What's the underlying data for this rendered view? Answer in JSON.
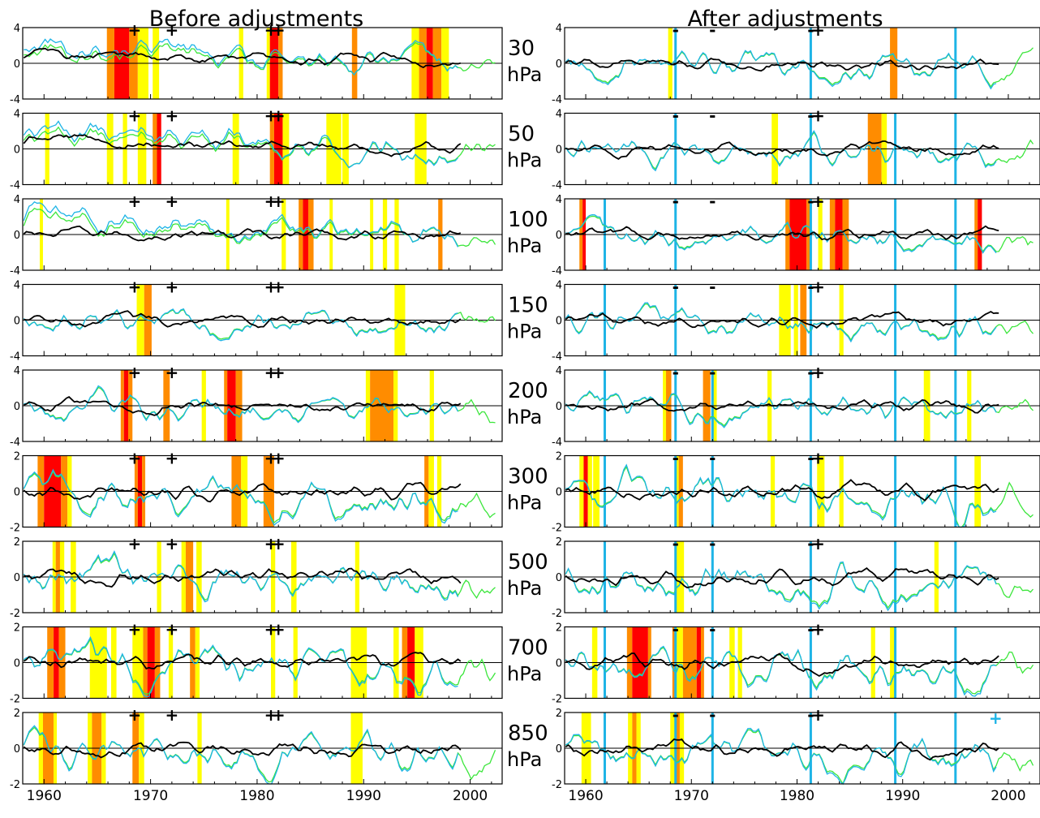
{
  "chart_data": {
    "type": "line",
    "titles": [
      "Before adjustments",
      "After adjustments"
    ],
    "x_ticks": [
      1960,
      1970,
      1980,
      1990,
      2000
    ],
    "xlim": [
      1958,
      2003
    ],
    "unit": "hPa",
    "colors": {
      "black_series": "#000000",
      "blue_series": "#1eb4e6",
      "green_series": "#3ce63c",
      "band_yellow": "#ffff00",
      "band_orange": "#ff8c00",
      "band_red": "#ff0000",
      "break_line": "#1eb4e6"
    },
    "event_marks": {
      "before_plus": [
        1968.5,
        1972.0,
        1981.3,
        1982.0
      ],
      "after_minus": [
        1968.5,
        1972.0,
        1981.3
      ],
      "after_plus": [
        1982.0
      ],
      "after_extra_plus_850": 1998.8
    },
    "blue_vertical_lines": {
      "30": [
        1968.5,
        1981.3,
        1995.0
      ],
      "50": [
        1968.5,
        1981.3,
        1989.3,
        1995.0
      ],
      "100": [
        1961.8,
        1968.5,
        1981.3,
        1989.3,
        1995.0
      ],
      "150": [
        1961.8,
        1968.5,
        1981.3,
        1989.3,
        1995.0
      ],
      "200": [
        1961.8,
        1968.5,
        1972.0,
        1981.3,
        1989.3,
        1995.0
      ],
      "300": [
        1961.8,
        1968.5,
        1972.0,
        1981.3,
        1989.3,
        1995.0
      ],
      "500": [
        1961.8,
        1968.5,
        1972.0,
        1981.3,
        1989.3,
        1995.0
      ],
      "700": [
        1961.8,
        1968.5,
        1972.0,
        1981.3,
        1989.3,
        1995.0
      ],
      "850": [
        1961.8,
        1968.5,
        1972.0,
        1981.3,
        1989.3,
        1995.0
      ]
    },
    "levels": [
      {
        "level": "30",
        "ylim": [
          -4,
          4
        ],
        "yticks": [
          "4",
          "0",
          "-4"
        ],
        "before_bands": [
          [
            1965.9,
            1966.6,
            "o"
          ],
          [
            1966.6,
            1968.0,
            "r"
          ],
          [
            1968.0,
            1968.8,
            "o"
          ],
          [
            1968.8,
            1969.8,
            "y"
          ],
          [
            1970.2,
            1970.8,
            "y"
          ],
          [
            1978.3,
            1978.7,
            "y"
          ],
          [
            1980.9,
            1981.2,
            "y"
          ],
          [
            1981.2,
            1982.0,
            "r"
          ],
          [
            1982.0,
            1982.4,
            "o"
          ],
          [
            1988.9,
            1989.4,
            "o"
          ],
          [
            1994.5,
            1995.2,
            "y"
          ],
          [
            1995.2,
            1995.9,
            "o"
          ],
          [
            1995.9,
            1996.5,
            "r"
          ],
          [
            1996.5,
            1997.3,
            "o"
          ],
          [
            1997.3,
            1998.0,
            "y"
          ]
        ],
        "after_bands": [
          [
            1967.8,
            1968.2,
            "y"
          ],
          [
            1988.8,
            1989.5,
            "o"
          ]
        ]
      },
      {
        "level": "50",
        "ylim": [
          -4,
          4
        ],
        "yticks": [
          "4",
          "0",
          "-4"
        ],
        "before_bands": [
          [
            1960.1,
            1960.5,
            "y"
          ],
          [
            1965.9,
            1966.5,
            "y"
          ],
          [
            1967.4,
            1967.8,
            "y"
          ],
          [
            1968.8,
            1969.6,
            "y"
          ],
          [
            1970.2,
            1970.6,
            "o"
          ],
          [
            1970.6,
            1971.0,
            "r"
          ],
          [
            1977.7,
            1978.3,
            "y"
          ],
          [
            1981.2,
            1981.6,
            "o"
          ],
          [
            1981.6,
            1982.4,
            "r"
          ],
          [
            1982.4,
            1983.0,
            "y"
          ],
          [
            1986.5,
            1987.9,
            "y"
          ],
          [
            1988.0,
            1988.6,
            "y"
          ],
          [
            1994.8,
            1995.9,
            "y"
          ]
        ],
        "after_bands": [
          [
            1977.6,
            1978.2,
            "y"
          ],
          [
            1986.7,
            1988.0,
            "o"
          ],
          [
            1988.0,
            1988.5,
            "y"
          ]
        ]
      },
      {
        "level": "100",
        "ylim": [
          -4,
          4
        ],
        "yticks": [
          "4",
          "0",
          "-4"
        ],
        "before_bands": [
          [
            1959.6,
            1959.9,
            "y"
          ],
          [
            1977.1,
            1977.4,
            "y"
          ],
          [
            1982.3,
            1982.7,
            "y"
          ],
          [
            1983.9,
            1984.3,
            "o"
          ],
          [
            1984.3,
            1984.8,
            "r"
          ],
          [
            1984.8,
            1985.3,
            "o"
          ],
          [
            1986.8,
            1987.1,
            "y"
          ],
          [
            1990.6,
            1990.9,
            "y"
          ],
          [
            1991.8,
            1992.2,
            "y"
          ],
          [
            1992.9,
            1993.3,
            "y"
          ],
          [
            1997.0,
            1997.4,
            "o"
          ]
        ],
        "after_bands": [
          [
            1959.4,
            1959.7,
            "o"
          ],
          [
            1959.7,
            1960.0,
            "r"
          ],
          [
            1978.9,
            1979.3,
            "o"
          ],
          [
            1979.3,
            1980.9,
            "r"
          ],
          [
            1980.9,
            1981.3,
            "o"
          ],
          [
            1982.0,
            1982.4,
            "y"
          ],
          [
            1983.1,
            1983.6,
            "o"
          ],
          [
            1983.6,
            1984.3,
            "r"
          ],
          [
            1984.3,
            1984.9,
            "o"
          ],
          [
            1996.8,
            1997.1,
            "o"
          ],
          [
            1997.1,
            1997.5,
            "r"
          ]
        ]
      },
      {
        "level": "150",
        "ylim": [
          -4,
          4
        ],
        "yticks": [
          "4",
          "0",
          "-4"
        ],
        "before_bands": [
          [
            1968.7,
            1969.4,
            "y"
          ],
          [
            1969.4,
            1970.1,
            "o"
          ],
          [
            1992.9,
            1993.9,
            "y"
          ]
        ],
        "after_bands": [
          [
            1978.3,
            1979.4,
            "y"
          ],
          [
            1979.7,
            1980.1,
            "y"
          ],
          [
            1980.3,
            1980.9,
            "o"
          ],
          [
            1984.0,
            1984.4,
            "y"
          ]
        ]
      },
      {
        "level": "200",
        "ylim": [
          -4,
          4
        ],
        "yticks": [
          "4",
          "0",
          "-4"
        ],
        "before_bands": [
          [
            1967.2,
            1967.5,
            "o"
          ],
          [
            1967.5,
            1967.9,
            "r"
          ],
          [
            1967.9,
            1968.3,
            "o"
          ],
          [
            1971.2,
            1971.8,
            "o"
          ],
          [
            1974.8,
            1975.2,
            "y"
          ],
          [
            1976.9,
            1977.2,
            "o"
          ],
          [
            1977.2,
            1978.0,
            "r"
          ],
          [
            1978.0,
            1978.6,
            "o"
          ],
          [
            1990.2,
            1990.6,
            "y"
          ],
          [
            1990.6,
            1992.8,
            "o"
          ],
          [
            1992.8,
            1993.2,
            "y"
          ],
          [
            1996.2,
            1996.6,
            "y"
          ]
        ],
        "after_bands": [
          [
            1967.3,
            1967.6,
            "y"
          ],
          [
            1967.6,
            1968.1,
            "o"
          ],
          [
            1971.1,
            1971.8,
            "o"
          ],
          [
            1972.0,
            1972.4,
            "y"
          ],
          [
            1977.2,
            1977.6,
            "y"
          ],
          [
            1992.0,
            1992.6,
            "y"
          ],
          [
            1996.1,
            1996.5,
            "y"
          ]
        ]
      }
    ],
    "levels_lower": [
      {
        "level": "300",
        "ylim": [
          -2,
          2
        ],
        "yticks": [
          "2",
          "0",
          "-2"
        ],
        "before_bands": [
          [
            1959.4,
            1960.0,
            "o"
          ],
          [
            1960.0,
            1961.6,
            "r"
          ],
          [
            1961.6,
            1962.2,
            "o"
          ],
          [
            1962.2,
            1962.6,
            "y"
          ],
          [
            1968.5,
            1968.8,
            "o"
          ],
          [
            1968.8,
            1969.2,
            "r"
          ],
          [
            1969.2,
            1969.5,
            "o"
          ],
          [
            1977.6,
            1978.5,
            "o"
          ],
          [
            1978.5,
            1979.1,
            "y"
          ],
          [
            1980.6,
            1981.6,
            "o"
          ],
          [
            1995.7,
            1996.1,
            "o"
          ],
          [
            1996.1,
            1996.6,
            "y"
          ],
          [
            1996.9,
            1997.3,
            "y"
          ]
        ],
        "after_bands": [
          [
            1959.4,
            1959.8,
            "y"
          ],
          [
            1959.8,
            1960.2,
            "r"
          ],
          [
            1960.2,
            1960.6,
            "y"
          ],
          [
            1960.7,
            1961.3,
            "y"
          ],
          [
            1968.5,
            1968.8,
            "y"
          ],
          [
            1968.8,
            1969.2,
            "o"
          ],
          [
            1977.5,
            1977.9,
            "y"
          ],
          [
            1981.9,
            1982.6,
            "y"
          ],
          [
            1984.0,
            1984.4,
            "y"
          ],
          [
            1996.8,
            1997.4,
            "y"
          ]
        ]
      },
      {
        "level": "500",
        "ylim": [
          -2,
          2
        ],
        "yticks": [
          "2",
          "0",
          "-2"
        ],
        "before_bands": [
          [
            1960.8,
            1961.1,
            "y"
          ],
          [
            1961.1,
            1961.5,
            "o"
          ],
          [
            1961.5,
            1961.9,
            "y"
          ],
          [
            1962.5,
            1963.0,
            "y"
          ],
          [
            1970.6,
            1971.0,
            "y"
          ],
          [
            1972.9,
            1973.3,
            "y"
          ],
          [
            1973.3,
            1974.0,
            "o"
          ],
          [
            1974.3,
            1974.8,
            "y"
          ],
          [
            1981.3,
            1981.7,
            "y"
          ],
          [
            1983.2,
            1983.7,
            "y"
          ],
          [
            1989.2,
            1989.6,
            "y"
          ]
        ],
        "after_bands": [
          [
            1968.4,
            1969.3,
            "y"
          ],
          [
            1993.0,
            1993.4,
            "y"
          ]
        ]
      },
      {
        "level": "700",
        "ylim": [
          -2,
          2
        ],
        "yticks": [
          "2",
          "0",
          "-2"
        ],
        "before_bands": [
          [
            1960.3,
            1960.9,
            "o"
          ],
          [
            1960.9,
            1961.4,
            "r"
          ],
          [
            1961.4,
            1962.0,
            "o"
          ],
          [
            1964.3,
            1965.9,
            "y"
          ],
          [
            1966.3,
            1966.8,
            "y"
          ],
          [
            1968.3,
            1969.3,
            "y"
          ],
          [
            1969.3,
            1969.7,
            "o"
          ],
          [
            1969.7,
            1970.4,
            "r"
          ],
          [
            1970.4,
            1970.9,
            "o"
          ],
          [
            1971.7,
            1972.1,
            "y"
          ],
          [
            1973.7,
            1974.2,
            "o"
          ],
          [
            1974.2,
            1974.6,
            "y"
          ],
          [
            1981.3,
            1981.7,
            "y"
          ],
          [
            1983.4,
            1983.8,
            "y"
          ],
          [
            1988.8,
            1990.3,
            "y"
          ],
          [
            1992.8,
            1993.3,
            "y"
          ],
          [
            1993.6,
            1994.1,
            "o"
          ],
          [
            1994.1,
            1994.8,
            "r"
          ],
          [
            1994.8,
            1995.6,
            "y"
          ]
        ],
        "after_bands": [
          [
            1960.6,
            1961.1,
            "y"
          ],
          [
            1963.9,
            1964.4,
            "o"
          ],
          [
            1964.4,
            1965.9,
            "r"
          ],
          [
            1965.9,
            1966.2,
            "o"
          ],
          [
            1968.2,
            1968.6,
            "o"
          ],
          [
            1968.6,
            1969.2,
            "y"
          ],
          [
            1969.2,
            1970.5,
            "o"
          ],
          [
            1970.5,
            1970.9,
            "r"
          ],
          [
            1970.9,
            1971.2,
            "o"
          ],
          [
            1973.6,
            1974.1,
            "y"
          ],
          [
            1974.4,
            1974.8,
            "y"
          ],
          [
            1987.0,
            1987.4,
            "y"
          ],
          [
            1988.8,
            1989.4,
            "y"
          ]
        ]
      },
      {
        "level": "850",
        "ylim": [
          -2,
          2
        ],
        "yticks": [
          "2",
          "0",
          "-2"
        ],
        "before_bands": [
          [
            1959.5,
            1959.9,
            "y"
          ],
          [
            1959.9,
            1960.9,
            "o"
          ],
          [
            1960.9,
            1961.2,
            "y"
          ],
          [
            1964.1,
            1964.5,
            "y"
          ],
          [
            1964.5,
            1965.4,
            "o"
          ],
          [
            1965.4,
            1965.8,
            "y"
          ],
          [
            1968.3,
            1968.9,
            "o"
          ],
          [
            1968.9,
            1969.4,
            "y"
          ],
          [
            1974.4,
            1974.8,
            "y"
          ],
          [
            1988.8,
            1989.9,
            "y"
          ]
        ],
        "after_bands": [
          [
            1959.6,
            1960.5,
            "y"
          ],
          [
            1964.0,
            1964.4,
            "y"
          ],
          [
            1964.4,
            1964.8,
            "o"
          ],
          [
            1964.8,
            1965.2,
            "y"
          ],
          [
            1968.0,
            1968.5,
            "y"
          ],
          [
            1968.5,
            1968.9,
            "o"
          ],
          [
            1968.9,
            1969.3,
            "y"
          ]
        ]
      }
    ]
  }
}
